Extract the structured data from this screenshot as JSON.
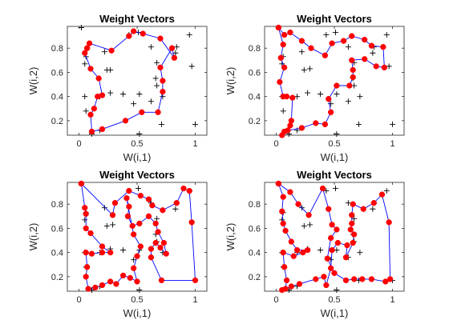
{
  "figure": {
    "background": "#ffffff"
  },
  "style": {
    "path_color": "#0000ff",
    "node_color": "#ff0000",
    "sample_color": "#000000"
  },
  "chart_data": [
    {
      "type": "line",
      "title": "Weight Vectors",
      "xlabel": "W(i,1)",
      "ylabel": "W(i,2)",
      "xlim": [
        -0.1,
        1.1
      ],
      "ylim": [
        0.08,
        0.98
      ],
      "xticks": [
        "0",
        "0.5",
        "1"
      ],
      "yticks": [
        "0.2",
        "0.4",
        "0.6",
        "0.8"
      ],
      "grid": false,
      "legend": "none",
      "samples": [
        [
          0.02,
          0.97
        ],
        [
          0.06,
          0.73
        ],
        [
          0.05,
          0.67
        ],
        [
          0.05,
          0.4
        ],
        [
          0.06,
          0.28
        ],
        [
          0.11,
          0.09
        ],
        [
          0.22,
          0.77
        ],
        [
          0.27,
          0.62
        ],
        [
          0.27,
          0.43
        ],
        [
          0.18,
          0.12
        ],
        [
          0.18,
          0.4
        ],
        [
          0.38,
          0.42
        ],
        [
          0.43,
          0.91
        ],
        [
          0.51,
          0.93
        ],
        [
          0.52,
          0.09
        ],
        [
          0.52,
          0.42
        ],
        [
          0.62,
          0.36
        ],
        [
          0.62,
          0.81
        ],
        [
          0.67,
          0.68
        ],
        [
          0.66,
          0.55
        ],
        [
          0.67,
          0.49
        ],
        [
          0.71,
          0.17
        ],
        [
          0.83,
          0.76
        ],
        [
          0.84,
          0.81
        ],
        [
          0.95,
          0.91
        ],
        [
          0.97,
          0.65
        ],
        [
          1.0,
          0.17
        ],
        [
          0.72,
          0.4
        ],
        [
          0.47,
          0.34
        ],
        [
          0.24,
          0.62
        ]
      ],
      "nodes": [
        [
          0.07,
          0.8
        ],
        [
          0.05,
          0.76
        ],
        [
          0.1,
          0.63
        ],
        [
          0.17,
          0.55
        ],
        [
          0.2,
          0.41
        ],
        [
          0.16,
          0.4
        ],
        [
          0.13,
          0.3
        ],
        [
          0.1,
          0.25
        ],
        [
          0.11,
          0.11
        ],
        [
          0.2,
          0.13
        ],
        [
          0.4,
          0.2
        ],
        [
          0.54,
          0.27
        ],
        [
          0.68,
          0.27
        ],
        [
          0.72,
          0.44
        ],
        [
          0.72,
          0.53
        ],
        [
          0.7,
          0.64
        ],
        [
          0.8,
          0.8
        ],
        [
          0.82,
          0.72
        ],
        [
          0.7,
          0.88
        ],
        [
          0.55,
          0.92
        ],
        [
          0.47,
          0.94
        ],
        [
          0.43,
          0.9
        ],
        [
          0.28,
          0.78
        ],
        [
          0.09,
          0.84
        ],
        [
          0.07,
          0.8
        ]
      ]
    },
    {
      "type": "line",
      "title": "Weight Vectors",
      "xlabel": "W(i,1)",
      "ylabel": "W(i,2)",
      "xlim": [
        -0.1,
        1.1
      ],
      "ylim": [
        0.08,
        0.98
      ],
      "xticks": [
        "0",
        "0.5",
        "1"
      ],
      "yticks": [
        "0.2",
        "0.4",
        "0.6",
        "0.8"
      ],
      "grid": false,
      "legend": "none",
      "samples": [
        [
          0.02,
          0.97
        ],
        [
          0.06,
          0.73
        ],
        [
          0.05,
          0.67
        ],
        [
          0.05,
          0.4
        ],
        [
          0.06,
          0.28
        ],
        [
          0.11,
          0.09
        ],
        [
          0.22,
          0.77
        ],
        [
          0.29,
          0.63
        ],
        [
          0.27,
          0.43
        ],
        [
          0.18,
          0.12
        ],
        [
          0.18,
          0.4
        ],
        [
          0.38,
          0.42
        ],
        [
          0.43,
          0.91
        ],
        [
          0.51,
          0.93
        ],
        [
          0.52,
          0.09
        ],
        [
          0.52,
          0.42
        ],
        [
          0.62,
          0.36
        ],
        [
          0.62,
          0.81
        ],
        [
          0.67,
          0.68
        ],
        [
          0.66,
          0.55
        ],
        [
          0.67,
          0.49
        ],
        [
          0.71,
          0.17
        ],
        [
          0.83,
          0.76
        ],
        [
          0.84,
          0.81
        ],
        [
          0.95,
          0.91
        ],
        [
          0.97,
          0.65
        ],
        [
          1.0,
          0.17
        ],
        [
          0.72,
          0.4
        ],
        [
          0.47,
          0.34
        ],
        [
          0.24,
          0.62
        ]
      ],
      "nodes": [
        [
          0.02,
          0.97
        ],
        [
          0.06,
          0.83
        ],
        [
          0.04,
          0.72
        ],
        [
          0.07,
          0.64
        ],
        [
          0.03,
          0.52
        ],
        [
          0.06,
          0.4
        ],
        [
          0.09,
          0.4
        ],
        [
          0.14,
          0.39
        ],
        [
          0.13,
          0.2
        ],
        [
          0.12,
          0.16
        ],
        [
          0.07,
          0.11
        ],
        [
          0.05,
          0.08
        ],
        [
          0.1,
          0.12
        ],
        [
          0.22,
          0.14
        ],
        [
          0.34,
          0.18
        ],
        [
          0.42,
          0.17
        ],
        [
          0.47,
          0.27
        ],
        [
          0.45,
          0.38
        ],
        [
          0.52,
          0.49
        ],
        [
          0.63,
          0.49
        ],
        [
          0.66,
          0.56
        ],
        [
          0.66,
          0.62
        ],
        [
          0.65,
          0.7
        ],
        [
          0.76,
          0.71
        ],
        [
          0.86,
          0.65
        ],
        [
          0.93,
          0.64
        ],
        [
          0.92,
          0.81
        ],
        [
          0.82,
          0.82
        ],
        [
          0.76,
          0.87
        ],
        [
          0.65,
          0.9
        ],
        [
          0.58,
          0.86
        ],
        [
          0.48,
          0.84
        ],
        [
          0.42,
          0.74
        ],
        [
          0.3,
          0.8
        ],
        [
          0.22,
          0.86
        ],
        [
          0.12,
          0.93
        ],
        [
          0.07,
          0.91
        ],
        [
          0.02,
          0.97
        ]
      ]
    },
    {
      "type": "line",
      "title": "Weight Vectors",
      "xlabel": "W(i,1)",
      "ylabel": "W(i,2)",
      "xlim": [
        -0.1,
        1.1
      ],
      "ylim": [
        0.08,
        0.98
      ],
      "xticks": [
        "0",
        "0.5",
        "1"
      ],
      "yticks": [
        "0.2",
        "0.4",
        "0.6",
        "0.8"
      ],
      "grid": false,
      "legend": "none",
      "samples": [
        [
          0.02,
          0.97
        ],
        [
          0.06,
          0.73
        ],
        [
          0.05,
          0.67
        ],
        [
          0.05,
          0.4
        ],
        [
          0.06,
          0.28
        ],
        [
          0.11,
          0.09
        ],
        [
          0.22,
          0.77
        ],
        [
          0.29,
          0.63
        ],
        [
          0.27,
          0.43
        ],
        [
          0.18,
          0.12
        ],
        [
          0.18,
          0.4
        ],
        [
          0.38,
          0.42
        ],
        [
          0.43,
          0.91
        ],
        [
          0.51,
          0.93
        ],
        [
          0.52,
          0.09
        ],
        [
          0.52,
          0.42
        ],
        [
          0.62,
          0.36
        ],
        [
          0.62,
          0.81
        ],
        [
          0.67,
          0.68
        ],
        [
          0.66,
          0.55
        ],
        [
          0.67,
          0.49
        ],
        [
          0.71,
          0.17
        ],
        [
          0.83,
          0.76
        ],
        [
          0.84,
          0.81
        ],
        [
          0.95,
          0.91
        ],
        [
          0.97,
          0.65
        ],
        [
          1.0,
          0.17
        ],
        [
          0.72,
          0.4
        ],
        [
          0.47,
          0.34
        ],
        [
          0.24,
          0.62
        ]
      ],
      "nodes": [
        [
          0.02,
          0.97
        ],
        [
          0.29,
          0.71
        ],
        [
          0.31,
          0.81
        ],
        [
          0.43,
          0.91
        ],
        [
          0.53,
          0.87
        ],
        [
          0.6,
          0.84
        ],
        [
          0.63,
          0.79
        ],
        [
          0.72,
          0.75
        ],
        [
          0.84,
          0.81
        ],
        [
          0.9,
          0.93
        ],
        [
          0.95,
          0.91
        ],
        [
          0.97,
          0.65
        ],
        [
          1.0,
          0.17
        ],
        [
          0.71,
          0.17
        ],
        [
          0.62,
          0.36
        ],
        [
          0.62,
          0.43
        ],
        [
          0.66,
          0.48
        ],
        [
          0.7,
          0.44
        ],
        [
          0.75,
          0.39
        ],
        [
          0.73,
          0.48
        ],
        [
          0.68,
          0.57
        ],
        [
          0.66,
          0.64
        ],
        [
          0.6,
          0.7
        ],
        [
          0.52,
          0.64
        ],
        [
          0.46,
          0.62
        ],
        [
          0.42,
          0.7
        ],
        [
          0.43,
          0.78
        ],
        [
          0.41,
          0.85
        ],
        [
          0.47,
          0.55
        ],
        [
          0.53,
          0.45
        ],
        [
          0.5,
          0.37
        ],
        [
          0.47,
          0.27
        ],
        [
          0.5,
          0.16
        ],
        [
          0.44,
          0.19
        ],
        [
          0.38,
          0.21
        ],
        [
          0.32,
          0.14
        ],
        [
          0.27,
          0.16
        ],
        [
          0.2,
          0.13
        ],
        [
          0.14,
          0.11
        ],
        [
          0.08,
          0.1
        ],
        [
          0.06,
          0.2
        ],
        [
          0.07,
          0.28
        ],
        [
          0.06,
          0.4
        ],
        [
          0.11,
          0.39
        ],
        [
          0.2,
          0.4
        ],
        [
          0.27,
          0.4
        ],
        [
          0.2,
          0.45
        ],
        [
          0.1,
          0.56
        ],
        [
          0.06,
          0.6
        ],
        [
          0.06,
          0.72
        ],
        [
          0.05,
          0.77
        ],
        [
          0.02,
          0.97
        ]
      ]
    },
    {
      "type": "line",
      "title": "Weight Vectors",
      "xlabel": "W(i,1)",
      "ylabel": "W(i,2)",
      "xlim": [
        -0.1,
        1.1
      ],
      "ylim": [
        0.08,
        0.98
      ],
      "xticks": [
        "0",
        "0.5",
        "1"
      ],
      "yticks": [
        "0.2",
        "0.4",
        "0.6",
        "0.8"
      ],
      "grid": false,
      "legend": "none",
      "samples": [
        [
          0.02,
          0.97
        ],
        [
          0.06,
          0.73
        ],
        [
          0.05,
          0.67
        ],
        [
          0.05,
          0.4
        ],
        [
          0.06,
          0.28
        ],
        [
          0.11,
          0.09
        ],
        [
          0.22,
          0.77
        ],
        [
          0.29,
          0.63
        ],
        [
          0.27,
          0.43
        ],
        [
          0.18,
          0.12
        ],
        [
          0.18,
          0.4
        ],
        [
          0.38,
          0.42
        ],
        [
          0.43,
          0.91
        ],
        [
          0.51,
          0.93
        ],
        [
          0.52,
          0.09
        ],
        [
          0.52,
          0.42
        ],
        [
          0.62,
          0.36
        ],
        [
          0.62,
          0.81
        ],
        [
          0.67,
          0.68
        ],
        [
          0.66,
          0.55
        ],
        [
          0.67,
          0.49
        ],
        [
          0.71,
          0.17
        ],
        [
          0.83,
          0.76
        ],
        [
          0.84,
          0.81
        ],
        [
          0.95,
          0.91
        ],
        [
          0.97,
          0.65
        ],
        [
          1.0,
          0.17
        ],
        [
          0.72,
          0.4
        ],
        [
          0.47,
          0.34
        ],
        [
          0.24,
          0.62
        ]
      ],
      "nodes": [
        [
          0.02,
          0.97
        ],
        [
          0.06,
          0.86
        ],
        [
          0.05,
          0.74
        ],
        [
          0.06,
          0.64
        ],
        [
          0.08,
          0.58
        ],
        [
          0.13,
          0.49
        ],
        [
          0.18,
          0.42
        ],
        [
          0.27,
          0.42
        ],
        [
          0.23,
          0.4
        ],
        [
          0.15,
          0.37
        ],
        [
          0.06,
          0.4
        ],
        [
          0.07,
          0.28
        ],
        [
          0.09,
          0.17
        ],
        [
          0.08,
          0.1
        ],
        [
          0.05,
          0.09
        ],
        [
          0.13,
          0.12
        ],
        [
          0.2,
          0.14
        ],
        [
          0.34,
          0.18
        ],
        [
          0.41,
          0.2
        ],
        [
          0.43,
          0.13
        ],
        [
          0.47,
          0.27
        ],
        [
          0.48,
          0.42
        ],
        [
          0.53,
          0.48
        ],
        [
          0.61,
          0.46
        ],
        [
          0.6,
          0.36
        ],
        [
          0.66,
          0.48
        ],
        [
          0.67,
          0.55
        ],
        [
          0.64,
          0.59
        ],
        [
          0.65,
          0.64
        ],
        [
          0.65,
          0.71
        ],
        [
          0.66,
          0.8
        ],
        [
          0.75,
          0.76
        ],
        [
          0.84,
          0.81
        ],
        [
          0.91,
          0.88
        ],
        [
          0.97,
          0.65
        ],
        [
          0.98,
          0.18
        ],
        [
          0.94,
          0.16
        ],
        [
          0.82,
          0.18
        ],
        [
          0.74,
          0.18
        ],
        [
          0.67,
          0.18
        ],
        [
          0.6,
          0.17
        ],
        [
          0.5,
          0.23
        ],
        [
          0.44,
          0.35
        ],
        [
          0.47,
          0.52
        ],
        [
          0.52,
          0.59
        ],
        [
          0.48,
          0.63
        ],
        [
          0.45,
          0.76
        ],
        [
          0.4,
          0.93
        ],
        [
          0.28,
          0.71
        ],
        [
          0.19,
          0.8
        ],
        [
          0.12,
          0.9
        ],
        [
          0.02,
          0.97
        ]
      ]
    }
  ]
}
